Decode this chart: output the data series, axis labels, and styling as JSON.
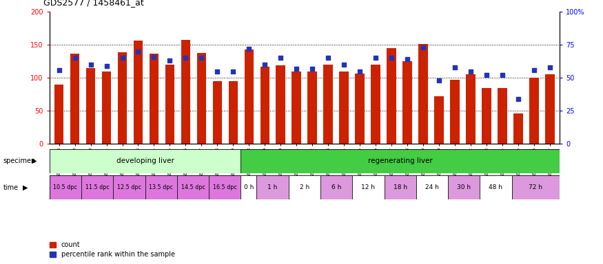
{
  "title": "GDS2577 / 1458461_at",
  "samples": [
    "GSM161128",
    "GSM161129",
    "GSM161130",
    "GSM161131",
    "GSM161132",
    "GSM161133",
    "GSM161134",
    "GSM161135",
    "GSM161136",
    "GSM161137",
    "GSM161138",
    "GSM161139",
    "GSM161108",
    "GSM161109",
    "GSM161110",
    "GSM161111",
    "GSM161112",
    "GSM161113",
    "GSM161114",
    "GSM161115",
    "GSM161116",
    "GSM161117",
    "GSM161118",
    "GSM161119",
    "GSM161120",
    "GSM161121",
    "GSM161122",
    "GSM161123",
    "GSM161124",
    "GSM161125",
    "GSM161126",
    "GSM161127"
  ],
  "counts": [
    90,
    137,
    115,
    110,
    139,
    157,
    137,
    120,
    158,
    138,
    95,
    95,
    143,
    117,
    119,
    110,
    110,
    120,
    110,
    107,
    120,
    145,
    125,
    151,
    72,
    97,
    105,
    85,
    85,
    46,
    100,
    105
  ],
  "percentiles": [
    56,
    65,
    60,
    59,
    65,
    70,
    66,
    63,
    65,
    65,
    55,
    55,
    72,
    60,
    65,
    57,
    57,
    65,
    60,
    55,
    65,
    65,
    64,
    73,
    48,
    58,
    55,
    52,
    52,
    34,
    56,
    58
  ],
  "ylim_left": [
    0,
    200
  ],
  "ylim_right": [
    0,
    100
  ],
  "yticks_left": [
    0,
    50,
    100,
    150,
    200
  ],
  "yticks_right": [
    0,
    25,
    50,
    75,
    100
  ],
  "ytick_labels_right": [
    "0",
    "25",
    "50",
    "75",
    "100%"
  ],
  "bar_color": "#cc2200",
  "dot_color": "#2233bb",
  "developing_liver_color": "#ccffcc",
  "regenerating_liver_color": "#44cc44",
  "time_dpc_color": "#dd77dd",
  "time_h_white": "#ffffff",
  "time_h_pink": "#dd99dd",
  "time_labels_dpc": [
    "10.5 dpc",
    "11.5 dpc",
    "12.5 dpc",
    "13.5 dpc",
    "14.5 dpc",
    "16.5 dpc"
  ],
  "time_labels_h": [
    "0 h",
    "1 h",
    "2 h",
    "6 h",
    "12 h",
    "18 h",
    "24 h",
    "30 h",
    "48 h",
    "72 h"
  ],
  "time_colors_h": [
    "#ffffff",
    "#dd99dd",
    "#ffffff",
    "#dd99dd",
    "#ffffff",
    "#dd99dd",
    "#ffffff",
    "#dd99dd",
    "#ffffff",
    "#dd99dd"
  ],
  "dpc_col_count": 12,
  "h_col_counts": [
    1,
    2,
    2,
    2,
    2,
    2,
    2,
    2,
    2,
    3
  ]
}
